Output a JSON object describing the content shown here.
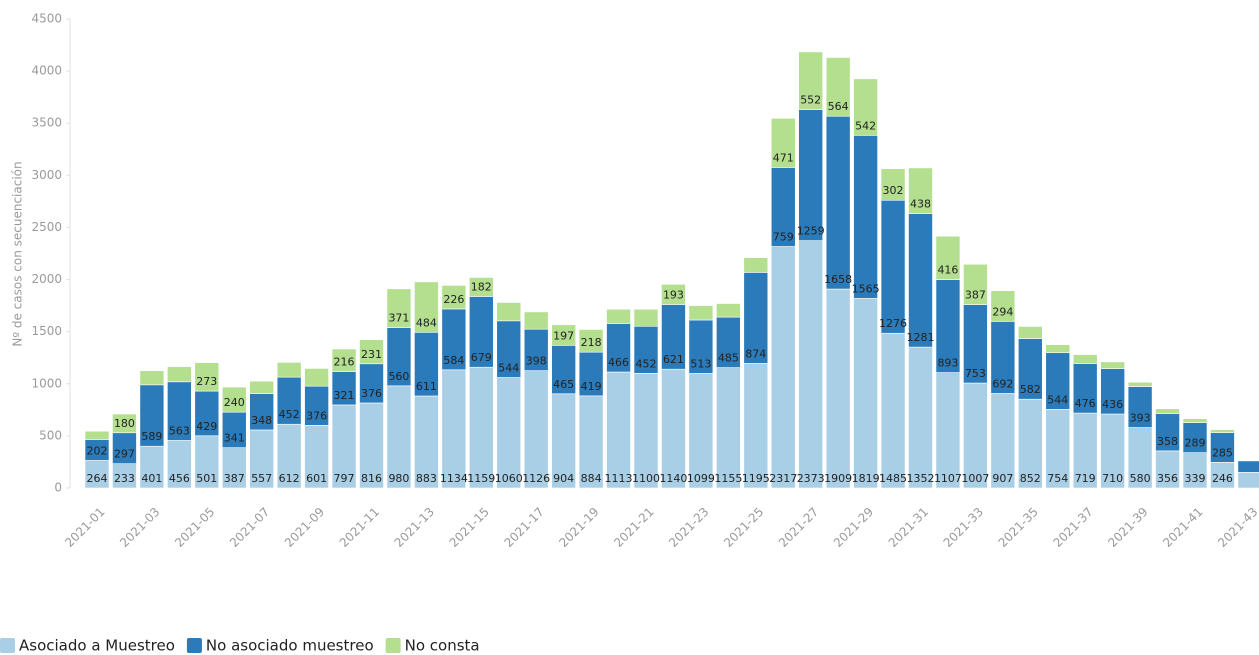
{
  "chart_data": {
    "type": "stacked-bar",
    "y_label": "Nº de casos con secuenciación",
    "categories": [
      "2021-01",
      null,
      "2021-03",
      null,
      "2021-05",
      null,
      "2021-07",
      null,
      "2021-09",
      null,
      "2021-11",
      null,
      "2021-13",
      null,
      "2021-15",
      null,
      "2021-17",
      null,
      "2021-19",
      null,
      "2021-21",
      null,
      "2021-23",
      null,
      "2021-25",
      null,
      "2021-27",
      null,
      "2021-29",
      null,
      "2021-31",
      null,
      "2021-33",
      null,
      "2021-35",
      null,
      "2021-37",
      null,
      "2021-39",
      null,
      "2021-41",
      null,
      "2021-43"
    ],
    "series": [
      {
        "name": "Asociado a Muestreo",
        "color": "#a9cfe6",
        "values": [
          264,
          233,
          401,
          456,
          501,
          387,
          557,
          612,
          601,
          797,
          816,
          980,
          883,
          1134,
          1159,
          1060,
          1126,
          904,
          884,
          1113,
          1100,
          1140,
          1099,
          1155,
          1195,
          2317,
          2373,
          1909,
          1819,
          1485,
          1352,
          1107,
          1007,
          907,
          852,
          754,
          719,
          710,
          580,
          356,
          339,
          246,
          150
        ]
      },
      {
        "name": "No asociado muestreo",
        "color": "#2b7bba",
        "values": [
          202,
          297,
          589,
          563,
          429,
          341,
          348,
          452,
          376,
          321,
          376,
          560,
          611,
          584,
          679,
          544,
          398,
          465,
          419,
          466,
          452,
          621,
          513,
          485,
          874,
          759,
          1259,
          1658,
          1565,
          1276,
          1281,
          893,
          753,
          692,
          582,
          544,
          476,
          436,
          393,
          358,
          289,
          285,
          110
        ]
      },
      {
        "name": "No consta",
        "color": "#b3df8f",
        "values": [
          79,
          180,
          135,
          146,
          273,
          240,
          120,
          141,
          170,
          216,
          231,
          371,
          484,
          226,
          182,
          176,
          166,
          197,
          218,
          136,
          163,
          193,
          138,
          130,
          141,
          471,
          552,
          564,
          542,
          302,
          438,
          416,
          387,
          294,
          116,
          77,
          85,
          64,
          42,
          46,
          37,
          29,
          0
        ]
      }
    ],
    "ylim": [
      0,
      4500
    ],
    "yticks": [
      0,
      500,
      1000,
      1500,
      2000,
      2500,
      3000,
      3500,
      4000,
      4500
    ]
  }
}
